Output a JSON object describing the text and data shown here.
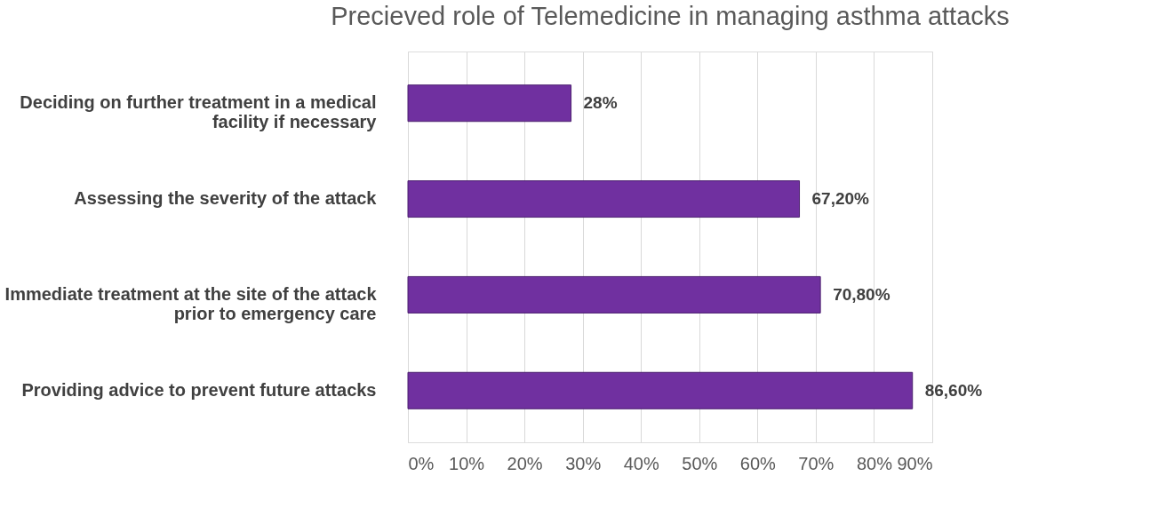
{
  "chart_data": {
    "type": "bar",
    "orientation": "horizontal",
    "title": "Precieved role of Telemedicine in managing asthma attacks",
    "categories": [
      "Deciding on further treatment in a medical facility if necessary",
      "Assessing the severity of the attack",
      "Immediate treatment at the site of the attack prior to emergency care",
      "Providing advice to prevent future attacks"
    ],
    "values": [
      28,
      67.2,
      70.8,
      86.6
    ],
    "value_labels": [
      "28%",
      "67,20%",
      "70,80%",
      "86,60%"
    ],
    "color": "#7030a0",
    "xlim": [
      0,
      90
    ],
    "xticks": [
      {
        "value": 0,
        "label": "0%"
      },
      {
        "value": 10,
        "label": "10%"
      },
      {
        "value": 20,
        "label": "20%"
      },
      {
        "value": 30,
        "label": "30%"
      },
      {
        "value": 40,
        "label": "40%"
      },
      {
        "value": 50,
        "label": "50%"
      },
      {
        "value": 60,
        "label": "60%"
      },
      {
        "value": 70,
        "label": "70%"
      },
      {
        "value": 80,
        "label": "80%"
      },
      {
        "value": 90,
        "label": "90%"
      }
    ],
    "grid": "x"
  }
}
